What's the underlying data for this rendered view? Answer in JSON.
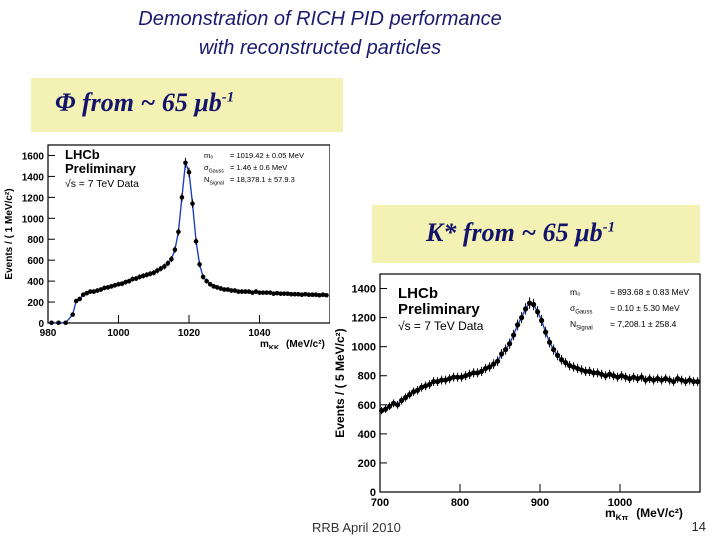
{
  "slide": {
    "title_line1": "Demonstration of RICH PID performance",
    "title_line2": "with reconstructed particles",
    "phi_banner": "Φ from ~ 65 μb",
    "phi_banner_sup": "-1",
    "kstar_banner": "K* from ~ 65 μb",
    "kstar_banner_sup": "-1",
    "footer_text": "RRB April 2010",
    "page_number": "14"
  },
  "chart_data": [
    {
      "type": "scatter",
      "name": "phi-peak",
      "ylabel": "Events / ( 1 MeV/c²)",
      "xlabel": "m_KK (MeV/c²)",
      "xlim": [
        980,
        1060
      ],
      "ylim": [
        0,
        1700
      ],
      "xticks": [
        980,
        1000,
        1020,
        1040
      ],
      "yticks": [
        0,
        200,
        400,
        600,
        800,
        1000,
        1200,
        1400,
        1600
      ],
      "annotation": {
        "experiment": "LHCb",
        "status": "Preliminary",
        "energy": "√s = 7 TeV Data",
        "fit_lines": [
          {
            "label": "m₀",
            "value": "= 1019.42 ± 0.05 MeV"
          },
          {
            "label": "σ_Gauss",
            "value": "= 1.46 ± 0.6 MeV"
          },
          {
            "label": "N_Signal",
            "value": "= 18,378.1 ± 57.9.3"
          }
        ]
      },
      "points": [
        [
          981,
          2
        ],
        [
          983,
          2
        ],
        [
          985,
          2
        ],
        [
          987,
          80
        ],
        [
          988,
          210
        ],
        [
          989,
          230
        ],
        [
          990,
          270
        ],
        [
          991,
          285
        ],
        [
          992,
          300
        ],
        [
          993,
          300
        ],
        [
          994,
          310
        ],
        [
          995,
          320
        ],
        [
          996,
          335
        ],
        [
          997,
          340
        ],
        [
          998,
          350
        ],
        [
          999,
          360
        ],
        [
          1000,
          370
        ],
        [
          1001,
          375
        ],
        [
          1002,
          390
        ],
        [
          1003,
          400
        ],
        [
          1004,
          420
        ],
        [
          1005,
          425
        ],
        [
          1006,
          440
        ],
        [
          1007,
          450
        ],
        [
          1008,
          460
        ],
        [
          1009,
          470
        ],
        [
          1010,
          480
        ],
        [
          1011,
          500
        ],
        [
          1012,
          520
        ],
        [
          1013,
          540
        ],
        [
          1014,
          570
        ],
        [
          1015,
          610
        ],
        [
          1016,
          700
        ],
        [
          1017,
          870
        ],
        [
          1018,
          1200
        ],
        [
          1019,
          1530
        ],
        [
          1020,
          1440
        ],
        [
          1021,
          1140
        ],
        [
          1022,
          780
        ],
        [
          1023,
          560
        ],
        [
          1024,
          440
        ],
        [
          1025,
          400
        ],
        [
          1026,
          370
        ],
        [
          1027,
          350
        ],
        [
          1028,
          340
        ],
        [
          1029,
          330
        ],
        [
          1030,
          320
        ],
        [
          1031,
          320
        ],
        [
          1032,
          310
        ],
        [
          1033,
          310
        ],
        [
          1034,
          300
        ],
        [
          1035,
          300
        ],
        [
          1036,
          300
        ],
        [
          1037,
          300
        ],
        [
          1038,
          290
        ],
        [
          1039,
          300
        ],
        [
          1040,
          290
        ],
        [
          1041,
          290
        ],
        [
          1042,
          290
        ],
        [
          1043,
          290
        ],
        [
          1044,
          280
        ],
        [
          1045,
          285
        ],
        [
          1046,
          280
        ],
        [
          1047,
          280
        ],
        [
          1048,
          280
        ],
        [
          1049,
          275
        ],
        [
          1050,
          275
        ],
        [
          1051,
          275
        ],
        [
          1052,
          270
        ],
        [
          1053,
          275
        ],
        [
          1054,
          270
        ],
        [
          1055,
          270
        ],
        [
          1056,
          270
        ],
        [
          1057,
          265
        ],
        [
          1058,
          270
        ],
        [
          1059,
          265
        ]
      ]
    },
    {
      "type": "scatter",
      "name": "kstar-peak",
      "ylabel": "Events / ( 5 MeV/c²)",
      "xlabel": "m_Kπ (MeV/c²)",
      "xlim": [
        700,
        1100
      ],
      "ylim": [
        0,
        1500
      ],
      "xticks": [
        700,
        800,
        900,
        1000
      ],
      "yticks": [
        0,
        200,
        400,
        600,
        800,
        1000,
        1200,
        1400
      ],
      "annotation": {
        "experiment": "LHCb",
        "status": "Preliminary",
        "energy": "√s = 7 TeV Data",
        "fit_lines": [
          {
            "label": "m₀",
            "value": "= 893.68 ± 0.83 MeV"
          },
          {
            "label": "σ_Gauss",
            "value": "= 0.10 ± 5.30 MeV"
          },
          {
            "label": "N_Signal",
            "value": "= 7,208.1 ± 258.4"
          }
        ]
      },
      "points": [
        [
          702,
          560
        ],
        [
          707,
          570
        ],
        [
          712,
          590
        ],
        [
          717,
          610
        ],
        [
          722,
          600
        ],
        [
          727,
          630
        ],
        [
          732,
          650
        ],
        [
          737,
          670
        ],
        [
          742,
          690
        ],
        [
          747,
          700
        ],
        [
          752,
          720
        ],
        [
          757,
          730
        ],
        [
          762,
          740
        ],
        [
          767,
          760
        ],
        [
          772,
          760
        ],
        [
          777,
          770
        ],
        [
          782,
          770
        ],
        [
          787,
          780
        ],
        [
          792,
          790
        ],
        [
          797,
          790
        ],
        [
          802,
          790
        ],
        [
          807,
          800
        ],
        [
          812,
          810
        ],
        [
          817,
          820
        ],
        [
          822,
          820
        ],
        [
          827,
          830
        ],
        [
          832,
          850
        ],
        [
          837,
          860
        ],
        [
          842,
          880
        ],
        [
          847,
          900
        ],
        [
          852,
          950
        ],
        [
          857,
          980
        ],
        [
          862,
          1020
        ],
        [
          867,
          1080
        ],
        [
          872,
          1150
        ],
        [
          877,
          1200
        ],
        [
          882,
          1260
        ],
        [
          887,
          1300
        ],
        [
          892,
          1290
        ],
        [
          897,
          1240
        ],
        [
          902,
          1180
        ],
        [
          907,
          1100
        ],
        [
          912,
          1030
        ],
        [
          917,
          980
        ],
        [
          922,
          940
        ],
        [
          927,
          910
        ],
        [
          932,
          890
        ],
        [
          937,
          870
        ],
        [
          942,
          860
        ],
        [
          947,
          850
        ],
        [
          952,
          840
        ],
        [
          957,
          830
        ],
        [
          962,
          830
        ],
        [
          967,
          820
        ],
        [
          972,
          820
        ],
        [
          977,
          810
        ],
        [
          982,
          800
        ],
        [
          987,
          810
        ],
        [
          992,
          800
        ],
        [
          997,
          790
        ],
        [
          1002,
          800
        ],
        [
          1007,
          790
        ],
        [
          1012,
          780
        ],
        [
          1017,
          790
        ],
        [
          1022,
          780
        ],
        [
          1027,
          790
        ],
        [
          1032,
          770
        ],
        [
          1037,
          780
        ],
        [
          1042,
          770
        ],
        [
          1047,
          780
        ],
        [
          1052,
          770
        ],
        [
          1057,
          780
        ],
        [
          1062,
          770
        ],
        [
          1067,
          760
        ],
        [
          1072,
          780
        ],
        [
          1077,
          770
        ],
        [
          1082,
          760
        ],
        [
          1087,
          770
        ],
        [
          1092,
          760
        ],
        [
          1097,
          760
        ]
      ]
    }
  ]
}
